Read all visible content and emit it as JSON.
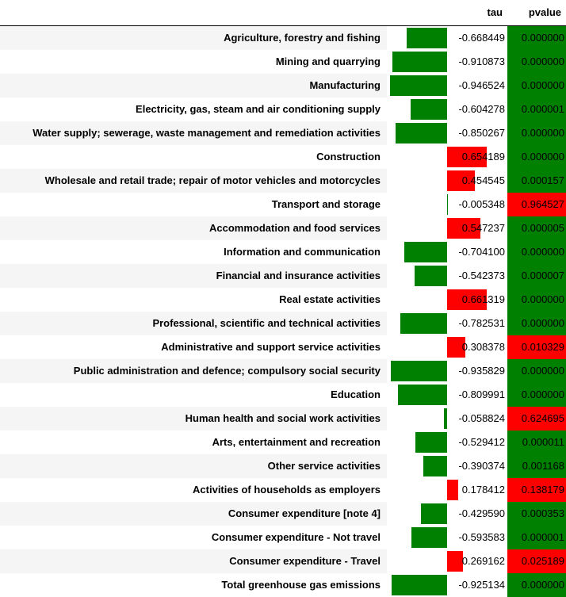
{
  "header": {
    "tau_label": "tau",
    "pvalue_label": "pvalue"
  },
  "colors": {
    "negative_bar": "#008000",
    "positive_bar": "#ff0000",
    "significant_bg": "#008000",
    "not_significant_bg": "#ff0000"
  },
  "tau_axis": {
    "min": -1.0,
    "max": 1.0
  },
  "rows": [
    {
      "label": "Agriculture, forestry and fishing",
      "tau": -0.668449,
      "tau_text": "-0.668449",
      "pvalue_text": "0.000000",
      "significant": true
    },
    {
      "label": "Mining and quarrying",
      "tau": -0.910873,
      "tau_text": "-0.910873",
      "pvalue_text": "0.000000",
      "significant": true
    },
    {
      "label": "Manufacturing",
      "tau": -0.946524,
      "tau_text": "-0.946524",
      "pvalue_text": "0.000000",
      "significant": true
    },
    {
      "label": "Electricity, gas, steam and air conditioning supply",
      "tau": -0.604278,
      "tau_text": "-0.604278",
      "pvalue_text": "0.000001",
      "significant": true
    },
    {
      "label": "Water supply; sewerage, waste management and remediation activities",
      "tau": -0.850267,
      "tau_text": "-0.850267",
      "pvalue_text": "0.000000",
      "significant": true
    },
    {
      "label": "Construction",
      "tau": 0.654189,
      "tau_text": "0.654189",
      "pvalue_text": "0.000000",
      "significant": true
    },
    {
      "label": "Wholesale and retail trade; repair of motor vehicles and motorcycles",
      "tau": 0.454545,
      "tau_text": "0.454545",
      "pvalue_text": "0.000157",
      "significant": true
    },
    {
      "label": "Transport and storage",
      "tau": -0.005348,
      "tau_text": "-0.005348",
      "pvalue_text": "0.964527",
      "significant": false
    },
    {
      "label": "Accommodation and food services",
      "tau": 0.547237,
      "tau_text": "0.547237",
      "pvalue_text": "0.000005",
      "significant": true
    },
    {
      "label": "Information and communication",
      "tau": -0.7041,
      "tau_text": "-0.704100",
      "pvalue_text": "0.000000",
      "significant": true
    },
    {
      "label": "Financial and insurance activities",
      "tau": -0.542373,
      "tau_text": "-0.542373",
      "pvalue_text": "0.000007",
      "significant": true
    },
    {
      "label": "Real estate activities",
      "tau": 0.661319,
      "tau_text": "0.661319",
      "pvalue_text": "0.000000",
      "significant": true
    },
    {
      "label": "Professional, scientific and technical activities",
      "tau": -0.782531,
      "tau_text": "-0.782531",
      "pvalue_text": "0.000000",
      "significant": true
    },
    {
      "label": "Administrative and support service activities",
      "tau": 0.308378,
      "tau_text": "0.308378",
      "pvalue_text": "0.010329",
      "significant": false
    },
    {
      "label": "Public administration and defence; compulsory social security",
      "tau": -0.935829,
      "tau_text": "-0.935829",
      "pvalue_text": "0.000000",
      "significant": true
    },
    {
      "label": "Education",
      "tau": -0.809991,
      "tau_text": "-0.809991",
      "pvalue_text": "0.000000",
      "significant": true
    },
    {
      "label": "Human health and social work activities",
      "tau": -0.058824,
      "tau_text": "-0.058824",
      "pvalue_text": "0.624695",
      "significant": false
    },
    {
      "label": "Arts, entertainment and recreation",
      "tau": -0.529412,
      "tau_text": "-0.529412",
      "pvalue_text": "0.000011",
      "significant": true
    },
    {
      "label": "Other service activities",
      "tau": -0.390374,
      "tau_text": "-0.390374",
      "pvalue_text": "0.001168",
      "significant": true
    },
    {
      "label": "Activities of households as employers",
      "tau": 0.178412,
      "tau_text": "0.178412",
      "pvalue_text": "0.138179",
      "significant": false
    },
    {
      "label": "Consumer expenditure [note 4]",
      "tau": -0.42959,
      "tau_text": "-0.429590",
      "pvalue_text": "0.000353",
      "significant": true
    },
    {
      "label": "Consumer expenditure - Not travel",
      "tau": -0.593583,
      "tau_text": "-0.593583",
      "pvalue_text": "0.000001",
      "significant": true
    },
    {
      "label": "Consumer expenditure - Travel",
      "tau": 0.269162,
      "tau_text": "0.269162",
      "pvalue_text": "0.025189",
      "significant": false
    },
    {
      "label": "Total greenhouse gas emissions",
      "tau": -0.925134,
      "tau_text": "-0.925134",
      "pvalue_text": "0.000000",
      "significant": true
    }
  ]
}
